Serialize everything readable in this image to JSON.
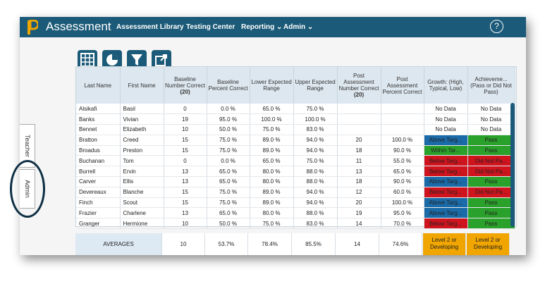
{
  "header": {
    "app_title": "Assessment",
    "nav": [
      {
        "label": "Assessment Library"
      },
      {
        "label": "Testing Center"
      },
      {
        "label": "Reporting ⌄"
      },
      {
        "label": "Admin ⌄"
      }
    ],
    "help_icon": "?"
  },
  "toolbar": {
    "icons": [
      "table-icon",
      "pie-chart-icon",
      "filter-icon",
      "export-icon"
    ]
  },
  "side_tabs": {
    "teacher": "Teacher",
    "admin": "Admin"
  },
  "table": {
    "headers": [
      {
        "text": "Last Name",
        "bold": ""
      },
      {
        "text": "First Name",
        "bold": ""
      },
      {
        "text": "Baseline Number Correct",
        "bold": "(20)"
      },
      {
        "text": "Baseline Percent Correct",
        "bold": ""
      },
      {
        "text": "Lower Expected Range",
        "bold": ""
      },
      {
        "text": "Upper Expected Range",
        "bold": ""
      },
      {
        "text": "Post Assessment Number Correct",
        "bold": "(20)"
      },
      {
        "text": "Post Assessment Percent Correct",
        "bold": ""
      },
      {
        "text": "Growth: (High, Typical, Low)",
        "bold": ""
      },
      {
        "text": "Achieveme... (Pass or Did Not Pass)",
        "bold": ""
      }
    ],
    "rows": [
      {
        "last": "Alsikafi",
        "first": "Basil",
        "bnc": "0",
        "bpc": "0.0 %",
        "low": "65.0 %",
        "up": "75.0 %",
        "pnc": "",
        "ppc": "",
        "growth": "No Data",
        "growth_status": "none",
        "ach": "No Data",
        "ach_status": "none"
      },
      {
        "last": "Banks",
        "first": "Vivian",
        "bnc": "19",
        "bpc": "95.0 %",
        "low": "100.0 %",
        "up": "100.0 %",
        "pnc": "",
        "ppc": "",
        "growth": "No Data",
        "growth_status": "none",
        "ach": "No Data",
        "ach_status": "none"
      },
      {
        "last": "Bennet",
        "first": "Elizabeth",
        "bnc": "10",
        "bpc": "50.0 %",
        "low": "75.0 %",
        "up": "83.0 %",
        "pnc": "",
        "ppc": "",
        "growth": "No Data",
        "growth_status": "none",
        "ach": "No Data",
        "ach_status": "none"
      },
      {
        "last": "Bratton",
        "first": "Creed",
        "bnc": "15",
        "bpc": "75.0 %",
        "low": "89.0 %",
        "up": "94.0 %",
        "pnc": "20",
        "ppc": "100.0 %",
        "growth": "Above Targ...",
        "growth_status": "blue",
        "ach": "Pass",
        "ach_status": "green"
      },
      {
        "last": "Broadus",
        "first": "Preston",
        "bnc": "15",
        "bpc": "75.0 %",
        "low": "89.0 %",
        "up": "94.0 %",
        "pnc": "18",
        "ppc": "90.0 %",
        "growth": "Within Tar...",
        "growth_status": "green",
        "ach": "Pass",
        "ach_status": "green"
      },
      {
        "last": "Buchanan",
        "first": "Tom",
        "bnc": "0",
        "bpc": "0.0 %",
        "low": "65.0 %",
        "up": "75.0 %",
        "pnc": "11",
        "ppc": "55.0 %",
        "growth": "Below Targ...",
        "growth_status": "red",
        "ach": "Did Not Pa...",
        "ach_status": "red"
      },
      {
        "last": "Burrell",
        "first": "Ervin",
        "bnc": "13",
        "bpc": "65.0 %",
        "low": "80.0 %",
        "up": "88.0 %",
        "pnc": "13",
        "ppc": "65.0 %",
        "growth": "Below Targ...",
        "growth_status": "red",
        "ach": "Did Not Pa...",
        "ach_status": "red"
      },
      {
        "last": "Carver",
        "first": "Ellis",
        "bnc": "13",
        "bpc": "65.0 %",
        "low": "80.0 %",
        "up": "88.0 %",
        "pnc": "18",
        "ppc": "90.0 %",
        "growth": "Above Targ...",
        "growth_status": "blue",
        "ach": "Pass",
        "ach_status": "green"
      },
      {
        "last": "Devereaux",
        "first": "Blanche",
        "bnc": "15",
        "bpc": "75.0 %",
        "low": "89.0 %",
        "up": "94.0 %",
        "pnc": "12",
        "ppc": "60.0 %",
        "growth": "Below Targ...",
        "growth_status": "red",
        "ach": "Did Not Pa...",
        "ach_status": "red"
      },
      {
        "last": "Finch",
        "first": "Scout",
        "bnc": "15",
        "bpc": "75.0 %",
        "low": "89.0 %",
        "up": "94.0 %",
        "pnc": "20",
        "ppc": "100.0 %",
        "growth": "Above Targ...",
        "growth_status": "blue",
        "ach": "Pass",
        "ach_status": "green"
      },
      {
        "last": "Frazier",
        "first": "Charlene",
        "bnc": "13",
        "bpc": "65.0 %",
        "low": "80.0 %",
        "up": "88.0 %",
        "pnc": "19",
        "ppc": "95.0 %",
        "growth": "Above Targ...",
        "growth_status": "blue",
        "ach": "Pass",
        "ach_status": "green"
      },
      {
        "last": "Granger",
        "first": "Hermione",
        "bnc": "10",
        "bpc": "50.0 %",
        "low": "75.0 %",
        "up": "83.0 %",
        "pnc": "14",
        "ppc": "70.0 %",
        "growth": "Below Targ...",
        "growth_status": "red",
        "ach": "Pass",
        "ach_status": "green"
      }
    ]
  },
  "averages": {
    "label": "AVERAGES",
    "bnc": "10",
    "bpc": "53.7%",
    "low": "78.4%",
    "up": "85.5%",
    "pnc": "14",
    "ppc": "74.6%",
    "growth": "Level 2 or Developing",
    "ach": "Level 2 or Developing"
  },
  "colors": {
    "brand": "#1b5a78",
    "above_target": "#1b6ba8",
    "within_target_pass": "#2aa12a",
    "below_target_fail": "#d0141e",
    "level": "#f0a500",
    "annotation_circle": "#0e2f44"
  }
}
